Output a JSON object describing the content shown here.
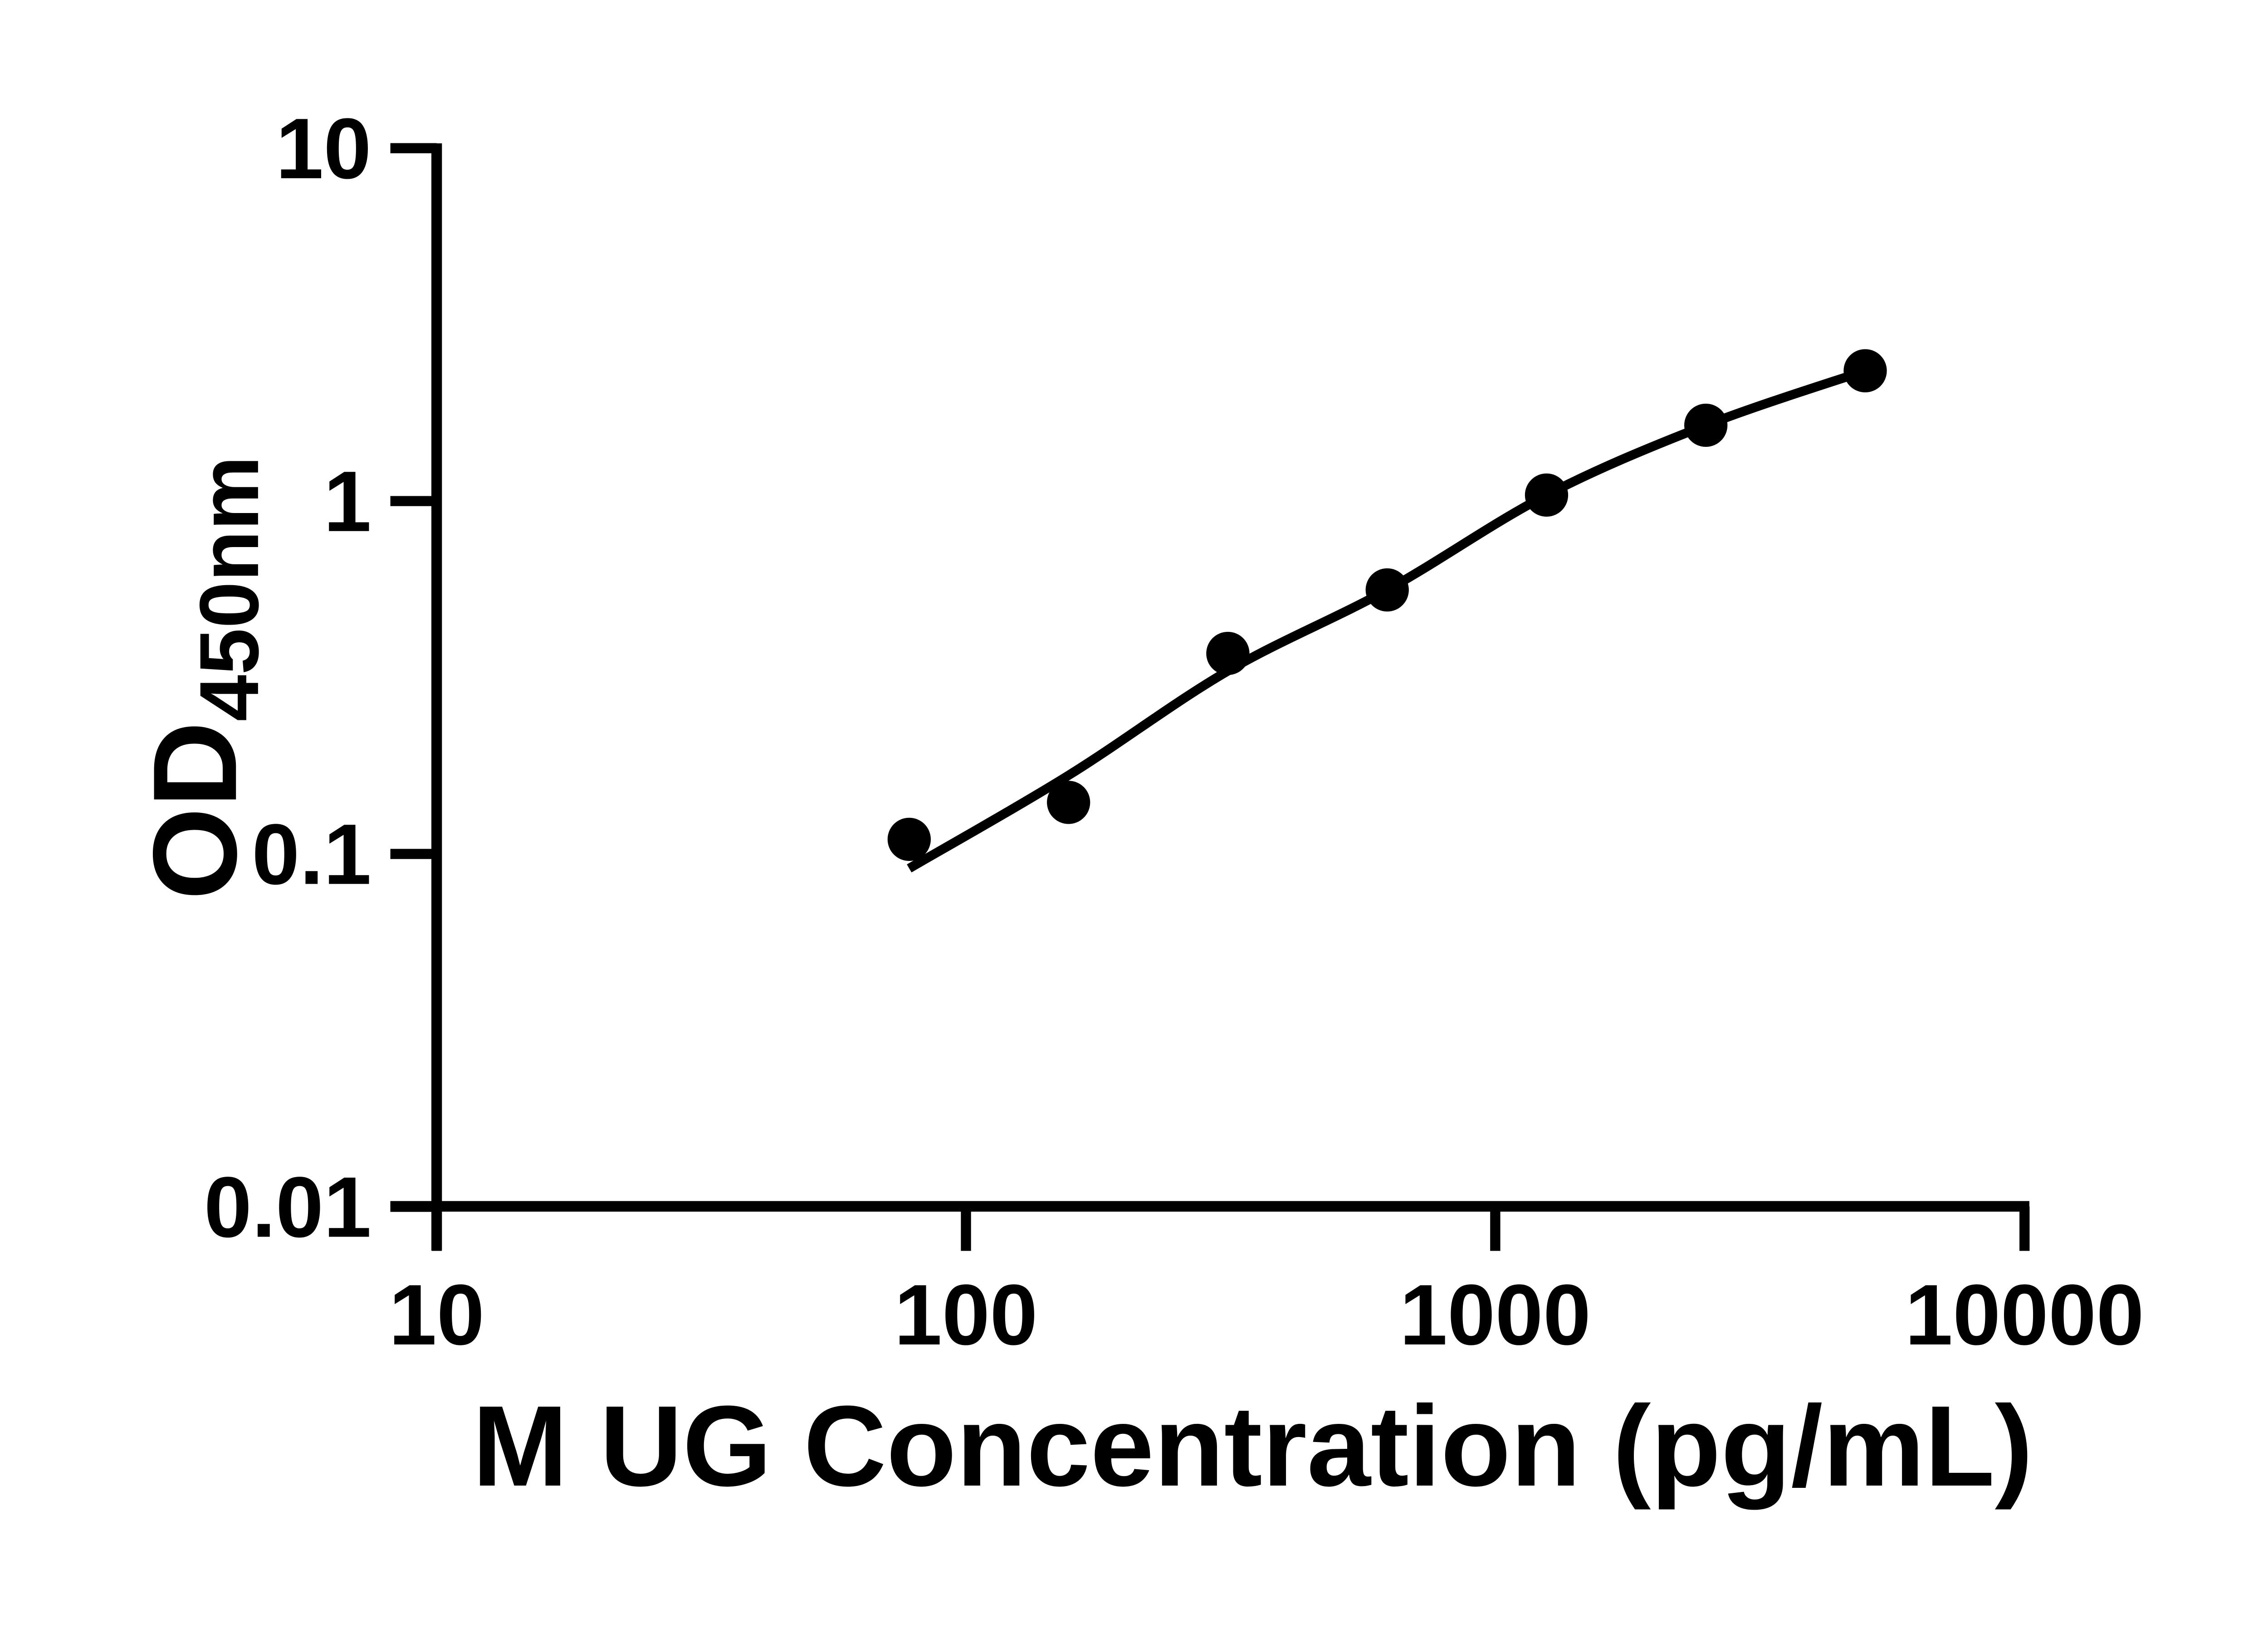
{
  "colors": {
    "foreground": "#000000",
    "background": "#ffffff"
  },
  "chart_data": {
    "type": "scatter",
    "title": "",
    "xlabel": "M UG Concentration (pg/mL)",
    "ylabel_main": "OD",
    "ylabel_sub": "450nm",
    "x_scale": "log10",
    "y_scale": "log10",
    "xlim": [
      10,
      10000
    ],
    "ylim": [
      0.01,
      10
    ],
    "grid": false,
    "legend": null,
    "x_ticks": [
      {
        "value": 10,
        "label": "10"
      },
      {
        "value": 100,
        "label": "100"
      },
      {
        "value": 1000,
        "label": "1000"
      },
      {
        "value": 10000,
        "label": "10000"
      }
    ],
    "y_ticks": [
      {
        "value": 10,
        "label": "10"
      },
      {
        "value": 1,
        "label": "1"
      },
      {
        "value": 0.1,
        "label": "0.1"
      },
      {
        "value": 0.01,
        "label": "0.01"
      }
    ],
    "series": [
      {
        "name": "standards",
        "marker": "filled-circle",
        "color": "#000000",
        "points": [
          {
            "x": 78.125,
            "y": 0.11
          },
          {
            "x": 156.25,
            "y": 0.14
          },
          {
            "x": 312.5,
            "y": 0.37
          },
          {
            "x": 625,
            "y": 0.56
          },
          {
            "x": 1250,
            "y": 1.04
          },
          {
            "x": 2500,
            "y": 1.64
          },
          {
            "x": 5000,
            "y": 2.34
          }
        ]
      }
    ],
    "fit_curve": {
      "name": "fitted standard curve",
      "color": "#000000",
      "points": [
        {
          "x": 78.125,
          "y": 0.091
        },
        {
          "x": 156.25,
          "y": 0.167
        },
        {
          "x": 312.5,
          "y": 0.33
        },
        {
          "x": 625,
          "y": 0.56
        },
        {
          "x": 1250,
          "y": 1.04
        },
        {
          "x": 2500,
          "y": 1.64
        },
        {
          "x": 5000,
          "y": 2.34
        }
      ]
    }
  }
}
